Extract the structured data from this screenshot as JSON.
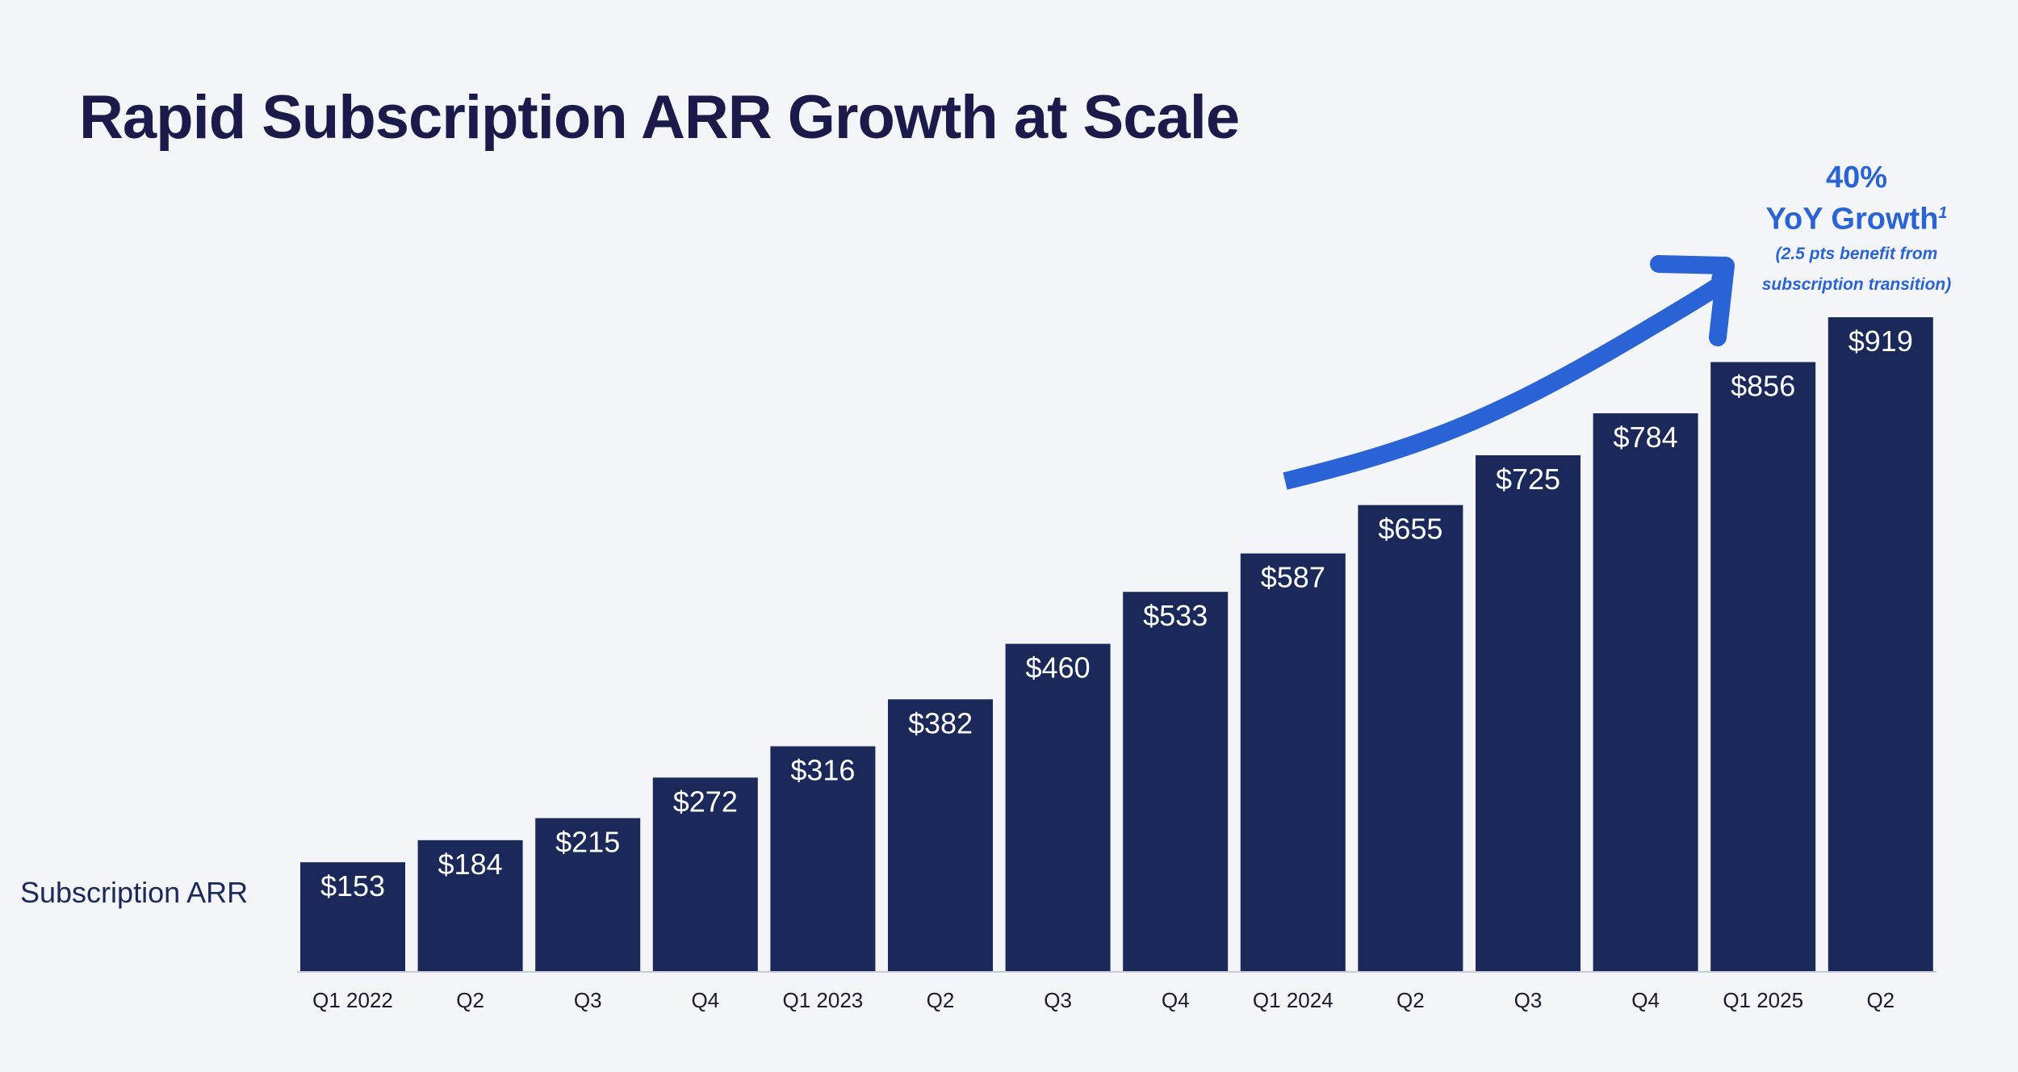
{
  "title": "Rapid Subscription ARR Growth at Scale",
  "callout": {
    "growth_pct": "40%",
    "growth_text": "YoY Growth",
    "footnote_marker": "1",
    "note_line1": "(2.5 pts benefit from",
    "note_line2": "subscription transition)"
  },
  "colors": {
    "bar": "#1a285a",
    "accent": "#2a63d6",
    "title": "#1b1a4a",
    "background": "#f3f5f8"
  },
  "chart_data": {
    "type": "bar",
    "title": "Rapid Subscription ARR Growth at Scale",
    "row_label": "Subscription ARR",
    "categories": [
      "Q1 2022",
      "Q2",
      "Q3",
      "Q4",
      "Q1 2023",
      "Q2",
      "Q3",
      "Q4",
      "Q1 2024",
      "Q2",
      "Q3",
      "Q4",
      "Q1 2025",
      "Q2"
    ],
    "values": [
      153,
      184,
      215,
      272,
      316,
      382,
      460,
      533,
      587,
      655,
      725,
      784,
      856,
      919
    ],
    "value_labels": [
      "$153",
      "$184",
      "$215",
      "$272",
      "$316",
      "$382",
      "$460",
      "$533",
      "$587",
      "$655",
      "$725",
      "$784",
      "$856",
      "$919"
    ],
    "ylim": [
      0,
      919
    ],
    "grid": false,
    "legend": "none"
  }
}
